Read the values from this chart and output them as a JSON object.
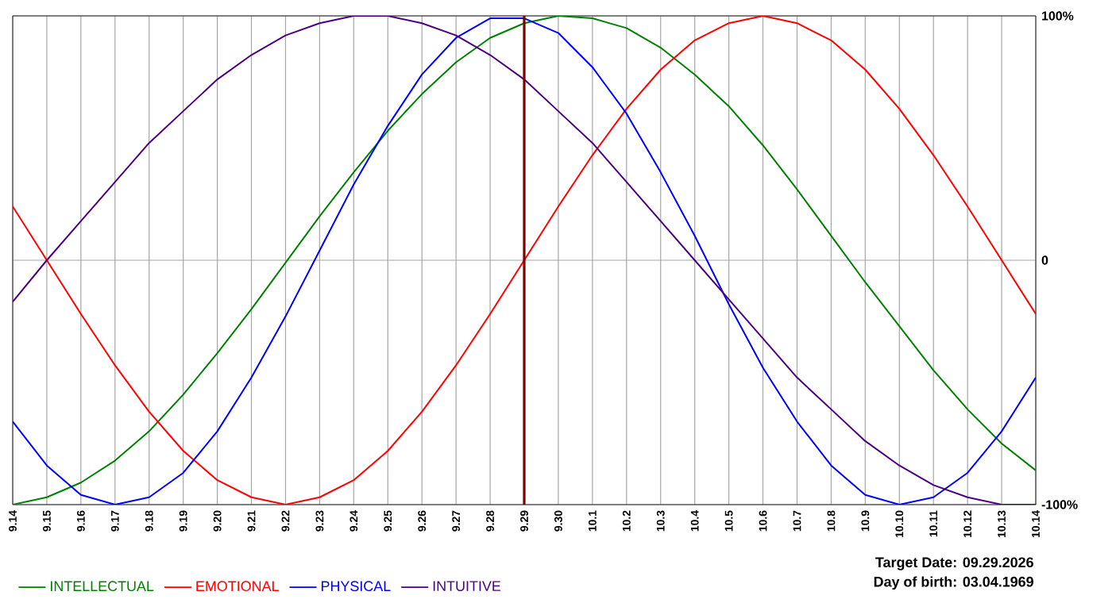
{
  "chart_data": {
    "type": "line",
    "categories": [
      "9.14",
      "9.15",
      "9.16",
      "9.17",
      "9.18",
      "9.19",
      "9.20",
      "9.21",
      "9.22",
      "9.23",
      "9.24",
      "9.25",
      "9.26",
      "9.27",
      "9.28",
      "9.29",
      "9.30",
      "10.1",
      "10.2",
      "10.3",
      "10.4",
      "10.5",
      "10.6",
      "10.7",
      "10.8",
      "10.9",
      "10.10",
      "10.11",
      "10.12",
      "10.13",
      "10.14"
    ],
    "series": [
      {
        "name": "INTELLECTUAL",
        "color": "#008000",
        "values": [
          -100,
          -97,
          -91,
          -82,
          -70,
          -55,
          -38,
          -20,
          -1,
          18,
          36,
          53,
          68,
          81,
          91,
          97,
          100,
          99,
          95,
          87,
          76,
          63,
          47,
          29,
          10,
          -9,
          -27,
          -45,
          -61,
          -75,
          -86
        ]
      },
      {
        "name": "EMOTIONAL",
        "color": "#ff0000",
        "values": [
          22,
          0,
          -22,
          -43,
          -62,
          -78,
          -90,
          -97,
          -100,
          -97,
          -90,
          -78,
          -62,
          -43,
          -22,
          0,
          22,
          43,
          62,
          78,
          90,
          97,
          100,
          97,
          90,
          78,
          62,
          43,
          22,
          0,
          -22
        ]
      },
      {
        "name": "PHYSICAL",
        "color": "#0000ff",
        "values": [
          -66,
          -84,
          -96,
          -100,
          -97,
          -87,
          -70,
          -48,
          -23,
          4,
          31,
          55,
          76,
          91,
          99,
          99,
          93,
          79,
          60,
          36,
          10,
          -18,
          -44,
          -66,
          -84,
          -96,
          -100,
          -97,
          -87,
          -70,
          -48
        ]
      },
      {
        "name": "INTUITIVE",
        "color": "#4b0082",
        "values": [
          -17,
          0,
          16,
          32,
          48,
          61,
          74,
          84,
          92,
          97,
          100,
          100,
          97,
          92,
          84,
          74,
          61,
          48,
          32,
          16,
          0,
          -16,
          -32,
          -48,
          -61,
          -74,
          -84,
          -92,
          -97,
          -100,
          -100
        ]
      }
    ],
    "ylim": [
      -100,
      100
    ],
    "yticks": [
      {
        "value": -100,
        "label": "-100%"
      },
      0,
      {
        "value": 100,
        "label": "100%"
      }
    ],
    "grid": true,
    "legend": "bottom",
    "ref_lines": [
      {
        "axis": "x",
        "value": "9.29",
        "color": "#800000"
      }
    ],
    "annotations": [
      "Target Date: 09.29.2026",
      "Day of birth: 03.04.1969"
    ]
  }
}
